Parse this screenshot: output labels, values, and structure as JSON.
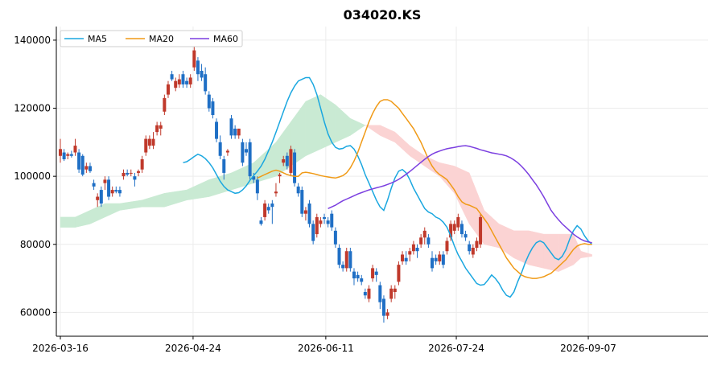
{
  "chart_data": {
    "type": "candlestick",
    "title": "034020.KS",
    "xlabel": "",
    "ylabel": "",
    "ylim": [
      53000,
      144000
    ],
    "y_ticks": [
      60000,
      80000,
      100000,
      120000,
      140000
    ],
    "y_tick_labels": [
      "60000",
      "80000",
      "100000",
      "120000",
      "140000"
    ],
    "x_ticks": [
      "2026-03-16",
      "2026-04-24",
      "2026-06-11",
      "2026-07-24",
      "2026-09-07"
    ],
    "grid": true,
    "legend": {
      "placement": "top-left",
      "entries": [
        "MA5",
        "MA20",
        "MA60"
      ]
    },
    "colors": {
      "up": "#c0392b",
      "down": "#1f6fc5",
      "ma5": "#1aa7e0",
      "ma20": "#f09a16",
      "ma60": "#7b3fe0",
      "cloud_bull": "#c9ead3",
      "cloud_bear": "#fbd3d3"
    },
    "series": [
      {
        "name": "MA5",
        "kind": "line",
        "values": [
          104000,
          104300,
          105000,
          105800,
          106500,
          106000,
          105200,
          104000,
          102500,
          100500,
          98500,
          97000,
          96000,
          95500,
          95000,
          95200,
          96000,
          97200,
          98800,
          100200,
          101500,
          103000,
          105000,
          107500,
          110000,
          113000,
          116000,
          119000,
          122000,
          124500,
          126500,
          128000,
          128500,
          129000,
          129000,
          127000,
          124000,
          120000,
          116000,
          112500,
          110000,
          108500,
          108000,
          108200,
          108800,
          109000,
          108000,
          106000,
          103500,
          100500,
          98000,
          95500,
          93000,
          91000,
          90000,
          93000,
          96500,
          99500,
          101500,
          102000,
          101000,
          99000,
          96500,
          94500,
          92500,
          90500,
          89500,
          89000,
          88000,
          87500,
          86500,
          85000,
          82500,
          79500,
          77000,
          75000,
          73000,
          71500,
          70000,
          68500,
          68000,
          68200,
          69500,
          71000,
          70000,
          68500,
          66500,
          65000,
          64500,
          66000,
          69000,
          71500,
          74500,
          77000,
          79000,
          80500,
          81000,
          80500,
          79000,
          77500,
          76000,
          75500,
          76500,
          78500,
          81500,
          84000,
          85500,
          84500,
          82500,
          81000,
          80000
        ]
      },
      {
        "name": "MA20",
        "kind": "line",
        "values": [
          99500,
          100000,
          100500,
          101000,
          101500,
          101800,
          101500,
          101000,
          100500,
          100200,
          100000,
          100000,
          101000,
          101200,
          101000,
          100800,
          100500,
          100200,
          100000,
          99800,
          99600,
          99500,
          99800,
          100200,
          101000,
          102500,
          104500,
          107000,
          110000,
          113000,
          116000,
          118500,
          120500,
          122000,
          122500,
          122500,
          122000,
          121000,
          120000,
          118500,
          117000,
          115500,
          114000,
          112000,
          110000,
          107500,
          105000,
          103000,
          101500,
          100500,
          99800,
          99000,
          97500,
          96000,
          94000,
          92500,
          91800,
          91500,
          91000,
          90500,
          89000,
          87500,
          86000,
          84000,
          82000,
          80000,
          78000,
          76000,
          74500,
          73000,
          72000,
          71000,
          70500,
          70200,
          70000,
          70000,
          70200,
          70500,
          71000,
          71500,
          72500,
          73500,
          74500,
          75500,
          77000,
          78500,
          79500,
          80000,
          80200,
          80000,
          80000
        ]
      },
      {
        "name": "MA60",
        "kind": "line",
        "values": [
          90500,
          91000,
          91500,
          92200,
          92800,
          93300,
          93800,
          94300,
          94800,
          95200,
          95600,
          96000,
          96300,
          96600,
          96900,
          97200,
          97600,
          98000,
          98500,
          99100,
          99800,
          100600,
          101400,
          102300,
          103200,
          104100,
          105000,
          105800,
          106500,
          107000,
          107400,
          107800,
          108100,
          108300,
          108500,
          108700,
          108900,
          109000,
          108800,
          108500,
          108200,
          107800,
          107500,
          107200,
          106900,
          106700,
          106500,
          106300,
          106000,
          105500,
          104800,
          104000,
          103000,
          101800,
          100500,
          99000,
          97500,
          95800,
          94000,
          92000,
          90000,
          88500,
          87200,
          86000,
          85000,
          84000,
          83000,
          82200,
          81500,
          81000,
          80700,
          80500
        ]
      }
    ],
    "candles": [
      {
        "o": 106000,
        "h": 111000,
        "l": 104000,
        "c": 108000
      },
      {
        "o": 107000,
        "h": 108000,
        "l": 104500,
        "c": 105000
      },
      {
        "o": 106000,
        "h": 107000,
        "l": 105000,
        "c": 106500
      },
      {
        "o": 106500,
        "h": 107500,
        "l": 105500,
        "c": 106000
      },
      {
        "o": 107000,
        "h": 111000,
        "l": 106000,
        "c": 109000
      },
      {
        "o": 107000,
        "h": 108000,
        "l": 101000,
        "c": 102000
      },
      {
        "o": 106000,
        "h": 106500,
        "l": 100000,
        "c": 100500
      },
      {
        "o": 102000,
        "h": 104000,
        "l": 101000,
        "c": 103000
      },
      {
        "o": 103000,
        "h": 104000,
        "l": 101000,
        "c": 101500
      },
      {
        "o": 98000,
        "h": 99000,
        "l": 96000,
        "c": 97000
      },
      {
        "o": 93000,
        "h": 95000,
        "l": 91000,
        "c": 94000
      },
      {
        "o": 96000,
        "h": 97000,
        "l": 91000,
        "c": 92000
      },
      {
        "o": 98000,
        "h": 100000,
        "l": 96000,
        "c": 99000
      },
      {
        "o": 99000,
        "h": 100000,
        "l": 93000,
        "c": 94000
      },
      {
        "o": 95000,
        "h": 97000,
        "l": 94000,
        "c": 96000
      },
      {
        "o": 96000,
        "h": 97000,
        "l": 95000,
        "c": 95500
      },
      {
        "o": 96000,
        "h": 97000,
        "l": 94000,
        "c": 95000
      },
      {
        "o": 100000,
        "h": 102000,
        "l": 99000,
        "c": 101000
      },
      {
        "o": 101000,
        "h": 102000,
        "l": 100000,
        "c": 100500
      },
      {
        "o": 101000,
        "h": 102000,
        "l": 100000,
        "c": 101000
      },
      {
        "o": 100000,
        "h": 101000,
        "l": 97000,
        "c": 99000
      },
      {
        "o": 101000,
        "h": 102000,
        "l": 100000,
        "c": 101500
      },
      {
        "o": 102000,
        "h": 106000,
        "l": 101000,
        "c": 105000
      },
      {
        "o": 107000,
        "h": 112000,
        "l": 106000,
        "c": 111000
      },
      {
        "o": 109000,
        "h": 112000,
        "l": 108000,
        "c": 111000
      },
      {
        "o": 109000,
        "h": 113000,
        "l": 108000,
        "c": 111000
      },
      {
        "o": 113000,
        "h": 116000,
        "l": 112000,
        "c": 115000
      },
      {
        "o": 114000,
        "h": 116000,
        "l": 112000,
        "c": 115000
      },
      {
        "o": 119000,
        "h": 124000,
        "l": 118000,
        "c": 123000
      },
      {
        "o": 124000,
        "h": 128000,
        "l": 123000,
        "c": 127000
      },
      {
        "o": 130000,
        "h": 131000,
        "l": 128000,
        "c": 128500
      },
      {
        "o": 126000,
        "h": 129000,
        "l": 125000,
        "c": 128000
      },
      {
        "o": 127000,
        "h": 130000,
        "l": 126000,
        "c": 128500
      },
      {
        "o": 130000,
        "h": 131000,
        "l": 126000,
        "c": 127000
      },
      {
        "o": 128000,
        "h": 129000,
        "l": 126000,
        "c": 127000
      },
      {
        "o": 127000,
        "h": 130000,
        "l": 126000,
        "c": 129000
      },
      {
        "o": 132000,
        "h": 138000,
        "l": 131000,
        "c": 137000
      },
      {
        "o": 134000,
        "h": 135000,
        "l": 128000,
        "c": 130000
      },
      {
        "o": 131000,
        "h": 133000,
        "l": 128000,
        "c": 129000
      },
      {
        "o": 130000,
        "h": 132000,
        "l": 124000,
        "c": 125000
      },
      {
        "o": 124000,
        "h": 125000,
        "l": 119000,
        "c": 120000
      },
      {
        "o": 122000,
        "h": 123000,
        "l": 117000,
        "c": 118000
      },
      {
        "o": 116000,
        "h": 117000,
        "l": 110000,
        "c": 111000
      },
      {
        "o": 110000,
        "h": 112000,
        "l": 105000,
        "c": 106000
      },
      {
        "o": 105000,
        "h": 106000,
        "l": 99000,
        "c": 101000
      },
      {
        "o": 107000,
        "h": 108000,
        "l": 106000,
        "c": 107500
      },
      {
        "o": 117000,
        "h": 118000,
        "l": 111000,
        "c": 112000
      },
      {
        "o": 114000,
        "h": 115000,
        "l": 111000,
        "c": 112000
      },
      {
        "o": 112000,
        "h": 114000,
        "l": 111000,
        "c": 114000
      },
      {
        "o": 110000,
        "h": 111000,
        "l": 103000,
        "c": 104000
      },
      {
        "o": 108000,
        "h": 110000,
        "l": 106000,
        "c": 107000
      },
      {
        "o": 110000,
        "h": 111000,
        "l": 99000,
        "c": 100000
      },
      {
        "o": 100000,
        "h": 101000,
        "l": 98000,
        "c": 99000
      },
      {
        "o": 99000,
        "h": 100000,
        "l": 93000,
        "c": 95000
      },
      {
        "o": 87000,
        "h": 88000,
        "l": 85500,
        "c": 86000
      },
      {
        "o": 88000,
        "h": 93000,
        "l": 87000,
        "c": 92000
      },
      {
        "o": 91000,
        "h": 92000,
        "l": 89000,
        "c": 90000
      },
      {
        "o": 92000,
        "h": 93000,
        "l": 86000,
        "c": 91000
      },
      {
        "o": 95000,
        "h": 98000,
        "l": 94000,
        "c": 95500
      },
      {
        "o": 100000,
        "h": 101000,
        "l": 98000,
        "c": 100500
      },
      {
        "o": 104000,
        "h": 106000,
        "l": 103000,
        "c": 105000
      },
      {
        "o": 106000,
        "h": 107000,
        "l": 102000,
        "c": 103000
      },
      {
        "o": 101000,
        "h": 109000,
        "l": 100000,
        "c": 108000
      },
      {
        "o": 107000,
        "h": 108000,
        "l": 97000,
        "c": 98000
      },
      {
        "o": 97000,
        "h": 98000,
        "l": 94000,
        "c": 95000
      },
      {
        "o": 96000,
        "h": 97000,
        "l": 88000,
        "c": 89000
      },
      {
        "o": 89000,
        "h": 91000,
        "l": 87000,
        "c": 90000
      },
      {
        "o": 92000,
        "h": 93000,
        "l": 85000,
        "c": 86000
      },
      {
        "o": 86000,
        "h": 87000,
        "l": 80000,
        "c": 81000
      },
      {
        "o": 83000,
        "h": 89000,
        "l": 82000,
        "c": 88000
      },
      {
        "o": 86000,
        "h": 88000,
        "l": 85000,
        "c": 87000
      },
      {
        "o": 88000,
        "h": 89000,
        "l": 86000,
        "c": 87500
      },
      {
        "o": 87000,
        "h": 88000,
        "l": 85000,
        "c": 86000
      },
      {
        "o": 89000,
        "h": 90000,
        "l": 84000,
        "c": 85000
      },
      {
        "o": 84000,
        "h": 85000,
        "l": 79000,
        "c": 80000
      },
      {
        "o": 79000,
        "h": 80000,
        "l": 73000,
        "c": 74000
      },
      {
        "o": 74000,
        "h": 75000,
        "l": 72000,
        "c": 73000
      },
      {
        "o": 73000,
        "h": 79000,
        "l": 72000,
        "c": 78000
      },
      {
        "o": 78000,
        "h": 79000,
        "l": 72000,
        "c": 73000
      },
      {
        "o": 72000,
        "h": 73000,
        "l": 68000,
        "c": 70000
      },
      {
        "o": 71000,
        "h": 72000,
        "l": 69000,
        "c": 70000
      },
      {
        "o": 70000,
        "h": 71000,
        "l": 68000,
        "c": 69000
      },
      {
        "o": 66000,
        "h": 67000,
        "l": 64000,
        "c": 65000
      },
      {
        "o": 64000,
        "h": 68000,
        "l": 63000,
        "c": 67000
      },
      {
        "o": 70000,
        "h": 74000,
        "l": 69000,
        "c": 73000
      },
      {
        "o": 72000,
        "h": 73000,
        "l": 69000,
        "c": 71000
      },
      {
        "o": 68000,
        "h": 69000,
        "l": 61000,
        "c": 63000
      },
      {
        "o": 64000,
        "h": 65000,
        "l": 57000,
        "c": 59000
      },
      {
        "o": 59000,
        "h": 61000,
        "l": 58000,
        "c": 60000
      },
      {
        "o": 64000,
        "h": 68000,
        "l": 63000,
        "c": 67000
      },
      {
        "o": 66000,
        "h": 68000,
        "l": 64000,
        "c": 67000
      },
      {
        "o": 69000,
        "h": 75000,
        "l": 68000,
        "c": 74000
      },
      {
        "o": 75000,
        "h": 78000,
        "l": 74000,
        "c": 77000
      },
      {
        "o": 76000,
        "h": 78000,
        "l": 74000,
        "c": 75000
      },
      {
        "o": 77000,
        "h": 79000,
        "l": 75000,
        "c": 78000
      },
      {
        "o": 78000,
        "h": 81000,
        "l": 77000,
        "c": 80000
      },
      {
        "o": 79000,
        "h": 80000,
        "l": 76000,
        "c": 78000
      },
      {
        "o": 80000,
        "h": 83000,
        "l": 79000,
        "c": 82000
      },
      {
        "o": 82000,
        "h": 85000,
        "l": 80000,
        "c": 84000
      },
      {
        "o": 82000,
        "h": 83000,
        "l": 79000,
        "c": 80000
      },
      {
        "o": 76000,
        "h": 78000,
        "l": 72000,
        "c": 73000
      },
      {
        "o": 76000,
        "h": 77000,
        "l": 74000,
        "c": 75000
      },
      {
        "o": 75000,
        "h": 78000,
        "l": 74000,
        "c": 77000
      },
      {
        "o": 77000,
        "h": 78000,
        "l": 73000,
        "c": 74000
      },
      {
        "o": 78000,
        "h": 82000,
        "l": 77000,
        "c": 81000
      },
      {
        "o": 82000,
        "h": 87000,
        "l": 81000,
        "c": 86000
      },
      {
        "o": 84000,
        "h": 87000,
        "l": 83000,
        "c": 86000
      },
      {
        "o": 85000,
        "h": 89000,
        "l": 84000,
        "c": 88000
      },
      {
        "o": 86000,
        "h": 87000,
        "l": 82000,
        "c": 83000
      },
      {
        "o": 83000,
        "h": 84000,
        "l": 81000,
        "c": 82000
      },
      {
        "o": 80000,
        "h": 81000,
        "l": 77000,
        "c": 78000
      },
      {
        "o": 77000,
        "h": 80000,
        "l": 76000,
        "c": 79000
      },
      {
        "o": 79000,
        "h": 82000,
        "l": 78000,
        "c": 81000
      },
      {
        "o": 80000,
        "h": 89000,
        "l": 79000,
        "c": 88000
      }
    ],
    "cloud": [
      {
        "x": 0,
        "a": 88000,
        "b": 85000
      },
      {
        "x": 4,
        "a": 88000,
        "b": 85000
      },
      {
        "x": 8,
        "a": 90000,
        "b": 86000
      },
      {
        "x": 12,
        "a": 92000,
        "b": 88000
      },
      {
        "x": 16,
        "a": 92000,
        "b": 90000
      },
      {
        "x": 22,
        "a": 93000,
        "b": 91000
      },
      {
        "x": 28,
        "a": 95000,
        "b": 91000
      },
      {
        "x": 34,
        "a": 96000,
        "b": 93000
      },
      {
        "x": 40,
        "a": 99000,
        "b": 94000
      },
      {
        "x": 46,
        "a": 101000,
        "b": 96000
      },
      {
        "x": 52,
        "a": 104000,
        "b": 98000
      },
      {
        "x": 58,
        "a": 110000,
        "b": 100000
      },
      {
        "x": 62,
        "a": 116000,
        "b": 103000
      },
      {
        "x": 66,
        "a": 122000,
        "b": 106000
      },
      {
        "x": 70,
        "a": 124000,
        "b": 108000
      },
      {
        "x": 74,
        "a": 121000,
        "b": 110000
      },
      {
        "x": 78,
        "a": 117000,
        "b": 112000
      },
      {
        "x": 82,
        "a": 115000,
        "b": 115000
      },
      {
        "x": 86,
        "a": 112000,
        "b": 115000
      },
      {
        "x": 90,
        "a": 110000,
        "b": 113000
      },
      {
        "x": 94,
        "a": 106000,
        "b": 109000
      },
      {
        "x": 98,
        "a": 103000,
        "b": 106000
      },
      {
        "x": 102,
        "a": 100000,
        "b": 104000
      },
      {
        "x": 106,
        "a": 95000,
        "b": 103000
      },
      {
        "x": 110,
        "a": 86000,
        "b": 101000
      },
      {
        "x": 114,
        "a": 80000,
        "b": 90000
      },
      {
        "x": 118,
        "a": 79000,
        "b": 86000
      },
      {
        "x": 122,
        "a": 76000,
        "b": 84000
      },
      {
        "x": 126,
        "a": 74000,
        "b": 84000
      },
      {
        "x": 130,
        "a": 73000,
        "b": 83000
      },
      {
        "x": 134,
        "a": 72000,
        "b": 83000
      },
      {
        "x": 138,
        "a": 74000,
        "b": 83000
      },
      {
        "x": 140,
        "a": 76000,
        "b": 78000
      },
      {
        "x": 143,
        "a": 77000,
        "b": 76500
      }
    ]
  }
}
